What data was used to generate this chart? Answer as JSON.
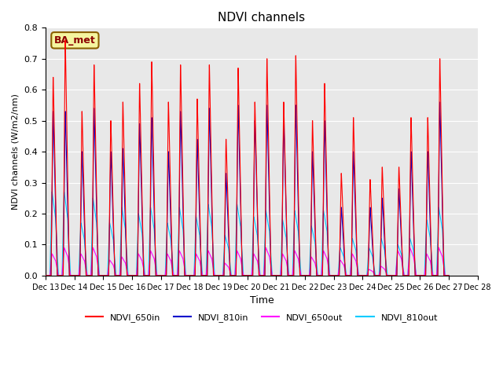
{
  "title": "NDVI channels",
  "xlabel": "Time",
  "ylabel": "NDVI channels (W/m2/nm)",
  "ylim": [
    0.0,
    0.8
  ],
  "background_color": "#e8e8e8",
  "legend_label": "BA_met",
  "series": {
    "NDVI_650in": {
      "color": "#ff0000",
      "lw": 0.8
    },
    "NDVI_810in": {
      "color": "#0000cc",
      "lw": 0.8
    },
    "NDVI_650out": {
      "color": "#ff00ff",
      "lw": 0.8
    },
    "NDVI_810out": {
      "color": "#00ccff",
      "lw": 0.8
    }
  },
  "tick_labels": [
    "Dec 13",
    "Dec 14",
    "Dec 15",
    "Dec 16",
    "Dec 17",
    "Dec 18",
    "Dec 19",
    "Dec 20",
    "Dec 21",
    "Dec 22",
    "Dec 23",
    "Dec 24",
    "Dec 25",
    "Dec 26",
    "Dec 27",
    "Dec 28"
  ],
  "day_peaks_am": {
    "NDVI_650in": [
      0.64,
      0.53,
      0.5,
      0.62,
      0.56,
      0.57,
      0.44,
      0.56,
      0.56,
      0.5,
      0.33,
      0.31,
      0.35,
      0.51
    ],
    "NDVI_810in": [
      0.53,
      0.4,
      0.4,
      0.49,
      0.4,
      0.44,
      0.33,
      0.5,
      0.5,
      0.4,
      0.22,
      0.22,
      0.28,
      0.4
    ],
    "NDVI_650out": [
      0.07,
      0.07,
      0.05,
      0.07,
      0.07,
      0.07,
      0.04,
      0.07,
      0.07,
      0.06,
      0.05,
      0.02,
      0.08,
      0.07
    ],
    "NDVI_810out": [
      0.27,
      0.17,
      0.17,
      0.2,
      0.17,
      0.19,
      0.13,
      0.19,
      0.18,
      0.16,
      0.09,
      0.09,
      0.1,
      0.18
    ]
  },
  "day_peaks_pm": {
    "NDVI_650in": [
      0.76,
      0.68,
      0.56,
      0.69,
      0.68,
      0.68,
      0.67,
      0.7,
      0.71,
      0.62,
      0.51,
      0.35,
      0.51,
      0.7
    ],
    "NDVI_810in": [
      0.53,
      0.54,
      0.41,
      0.51,
      0.53,
      0.54,
      0.55,
      0.55,
      0.55,
      0.5,
      0.4,
      0.25,
      0.4,
      0.56
    ],
    "NDVI_650out": [
      0.09,
      0.09,
      0.06,
      0.08,
      0.08,
      0.08,
      0.08,
      0.09,
      0.08,
      0.08,
      0.07,
      0.03,
      0.09,
      0.09
    ],
    "NDVI_810out": [
      0.27,
      0.25,
      0.22,
      0.22,
      0.22,
      0.23,
      0.23,
      0.21,
      0.21,
      0.21,
      0.12,
      0.12,
      0.12,
      0.22
    ]
  }
}
